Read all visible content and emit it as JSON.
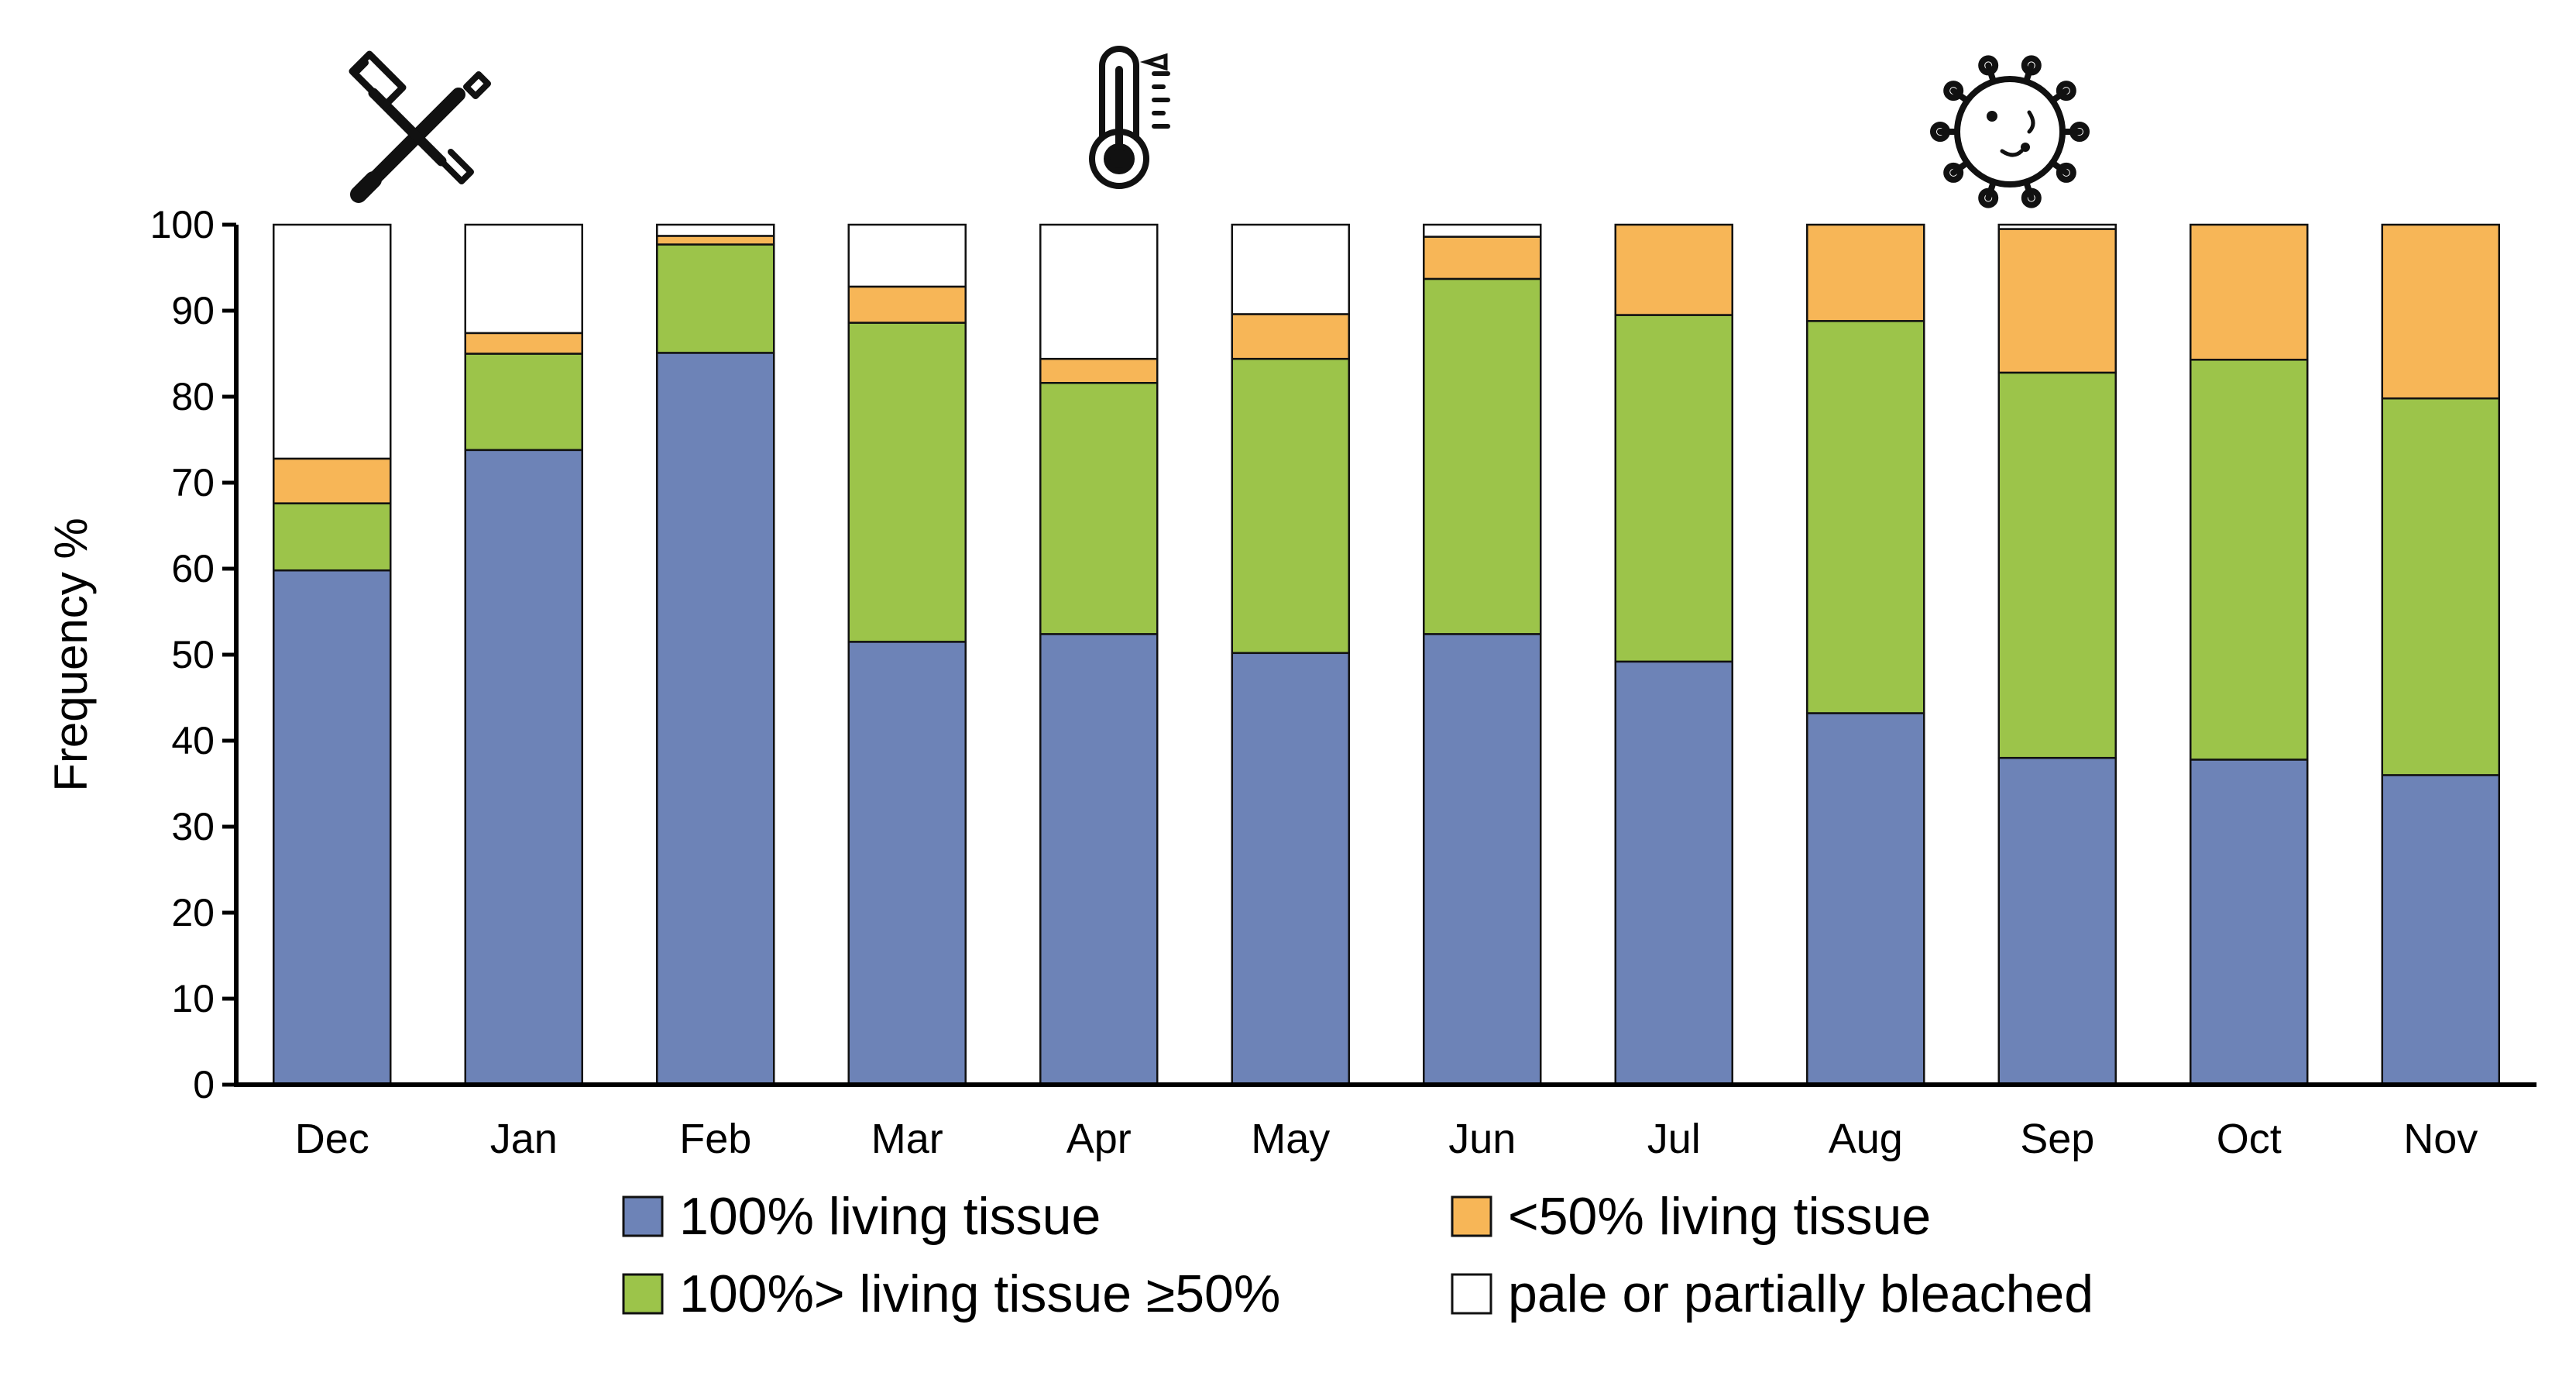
{
  "chart_data": {
    "type": "bar",
    "stacked": true,
    "title": "",
    "xlabel": "",
    "ylabel": "Frequency %",
    "ylim": [
      0,
      100
    ],
    "yticks": [
      0,
      10,
      20,
      30,
      40,
      50,
      60,
      70,
      80,
      90,
      100
    ],
    "grid": false,
    "categories": [
      "Dec",
      "Jan",
      "Feb",
      "Mar",
      "Apr",
      "May",
      "Jun",
      "Jul",
      "Aug",
      "Sep",
      "Oct",
      "Nov"
    ],
    "series": [
      {
        "name": "100% living tissue",
        "color": "#6d83b7",
        "values": [
          59.8,
          73.8,
          85.1,
          51.5,
          52.4,
          50.2,
          52.4,
          49.2,
          43.2,
          38.0,
          37.8,
          36.0
        ]
      },
      {
        "name": "100%> living tissue ≥50%",
        "color": "#9cc44a",
        "values": [
          7.8,
          11.2,
          12.6,
          37.1,
          29.2,
          34.2,
          41.3,
          40.3,
          45.6,
          44.8,
          46.5,
          43.8
        ]
      },
      {
        "name": "<50% living tissue",
        "color": "#f7b657",
        "values": [
          5.2,
          2.4,
          1.0,
          4.2,
          2.8,
          5.2,
          4.9,
          10.5,
          11.2,
          16.7,
          15.7,
          20.2
        ]
      },
      {
        "name": "pale or partially bleached",
        "color": "#ffffff",
        "values": [
          27.2,
          12.6,
          1.3,
          7.2,
          15.6,
          10.4,
          1.4,
          0.0,
          0.0,
          0.5,
          0.0,
          0.0
        ]
      }
    ],
    "legend_position": "bottom",
    "annotations": [
      {
        "name": "tools-icon",
        "month": "Dec"
      },
      {
        "name": "thermometer-icon",
        "month": "Apr"
      },
      {
        "name": "virus-icon",
        "month": "Sep"
      }
    ]
  }
}
